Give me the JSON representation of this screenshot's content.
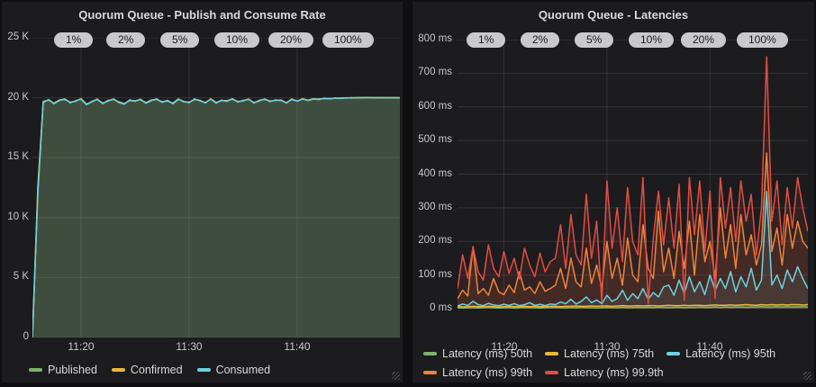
{
  "page": {
    "background": "#0f0f11",
    "panel_background": "#1c1c1f",
    "grid_color": "rgba(255,255,255,0.10)",
    "text_color": "#d8d9da",
    "axis_label_color": "#c7c8ca",
    "pill_background": "#c9c9cb"
  },
  "panels": [
    {
      "title": "Quorum Queue - Publish and Consume Rate",
      "pills": [
        "1%",
        "2%",
        "5%",
        "10%",
        "20%",
        "100%"
      ],
      "chart_data": {
        "type": "line",
        "title": "Quorum Queue - Publish and Consume Rate",
        "x_unit": "time of day, minutes after 11:15.5",
        "x_start": 0,
        "x_step": 0.5,
        "x_domain": [
          0,
          34
        ],
        "ylim": [
          0,
          25000
        ],
        "grid": true,
        "legend_position": "bottom",
        "y_ticks": [
          {
            "label": "25 K",
            "v": 25000
          },
          {
            "label": "20 K",
            "v": 20000
          },
          {
            "label": "15 K",
            "v": 15000
          },
          {
            "label": "10 K",
            "v": 10000
          },
          {
            "label": "5 K",
            "v": 5000
          },
          {
            "label": "0",
            "v": 0
          }
        ],
        "x_ticks": [
          {
            "label": "11:20",
            "t": 4.5
          },
          {
            "label": "11:30",
            "t": 14.5
          },
          {
            "label": "11:40",
            "t": 24.5
          }
        ],
        "series": [
          {
            "name": "Published",
            "color": "#7EB26D",
            "fill_opacity": 0.18,
            "values": [
              0,
              12600,
              19700,
              19800,
              19560,
              19820,
              19850,
              19640,
              19700,
              19920,
              19480,
              19650,
              19900,
              19500,
              19780,
              19850,
              19660,
              19520,
              19760,
              19750,
              19830,
              19600,
              19820,
              19840,
              19680,
              19720,
              19560,
              19900,
              19650,
              19640,
              19850,
              19790,
              19560,
              19920,
              19620,
              19750,
              19760,
              19870,
              19700,
              19730,
              19900,
              19560,
              19800,
              19850,
              19730,
              19770,
              19820,
              19560,
              19900,
              19700,
              19930,
              19760,
              19880,
              19900,
              19920,
              19940,
              19950,
              19980,
              19970,
              20010,
              19990,
              20020,
              20000,
              20015,
              20000,
              20010,
              20000,
              20008,
              20000
            ]
          },
          {
            "name": "Confirmed",
            "color": "#EAB839",
            "fill_opacity": 0.07,
            "values": [
              0,
              12300,
              19650,
              19820,
              19530,
              19800,
              19870,
              19610,
              19730,
              19900,
              19450,
              19680,
              19870,
              19530,
              19750,
              19880,
              19630,
              19490,
              19790,
              19720,
              19850,
              19570,
              19790,
              19870,
              19650,
              19750,
              19530,
              19880,
              19680,
              19610,
              19870,
              19760,
              19580,
              19900,
              19590,
              19780,
              19730,
              19900,
              19670,
              19760,
              19880,
              19580,
              19770,
              19880,
              19710,
              19800,
              19790,
              19580,
              19880,
              19720,
              19900,
              19780,
              19900,
              19880,
              19940,
              19920,
              19960,
              19960,
              19990,
              20000,
              20000,
              20010,
              20010,
              20005,
              20005,
              20005,
              20002,
              20004,
              20000
            ]
          },
          {
            "name": "Consumed",
            "color": "#6ED0E0",
            "fill_opacity": 0.1,
            "values": [
              0,
              12000,
              19600,
              19850,
              19500,
              19780,
              19900,
              19580,
              19750,
              19880,
              19420,
              19700,
              19850,
              19560,
              19720,
              19900,
              19600,
              19460,
              19820,
              19700,
              19880,
              19540,
              19760,
              19900,
              19620,
              19780,
              19500,
              19860,
              19700,
              19580,
              19900,
              19740,
              19600,
              19880,
              19560,
              19800,
              19700,
              19920,
              19640,
              19780,
              19860,
              19600,
              19740,
              19900,
              19680,
              19820,
              19760,
              19600,
              19860,
              19740,
              19880,
              19800,
              19920,
              19850,
              19960,
              19900,
              19980,
              19940,
              20000,
              19980,
              20010,
              20000,
              20020,
              20000,
              20010,
              20000,
              20005,
              20000,
              20000
            ]
          }
        ]
      }
    },
    {
      "title": "Quorum Queue - Latencies",
      "pills": [
        "1%",
        "2%",
        "5%",
        "10%",
        "20%",
        "100%"
      ],
      "chart_data": {
        "type": "line",
        "title": "Quorum Queue - Latencies",
        "x_unit": "time of day, minutes after 11:15.5",
        "x_start": 0,
        "x_step": 0.5,
        "x_domain": [
          0,
          34
        ],
        "ylim": [
          0,
          800
        ],
        "grid": true,
        "legend_position": "bottom",
        "y_ticks": [
          {
            "label": "800 ms",
            "v": 800
          },
          {
            "label": "700 ms",
            "v": 700
          },
          {
            "label": "600 ms",
            "v": 600
          },
          {
            "label": "500 ms",
            "v": 500
          },
          {
            "label": "400 ms",
            "v": 400
          },
          {
            "label": "300 ms",
            "v": 300
          },
          {
            "label": "200 ms",
            "v": 200
          },
          {
            "label": "100 ms",
            "v": 100
          },
          {
            "label": "0 ms",
            "v": 0
          }
        ],
        "x_ticks": [
          {
            "label": "11:20",
            "t": 4.5
          },
          {
            "label": "11:30",
            "t": 14.5
          },
          {
            "label": "11:40",
            "t": 24.5
          }
        ],
        "series": [
          {
            "name": "Latency (ms) 50th",
            "color": "#7EB26D",
            "fill_opacity": 0.1,
            "values": [
              3,
              2,
              3,
              3,
              2,
              3,
              4,
              3,
              2,
              3,
              3,
              2,
              3,
              4,
              3,
              3,
              2,
              3,
              3,
              4,
              3,
              2,
              3,
              3,
              4,
              3,
              3,
              2,
              3,
              4,
              3,
              3,
              4,
              3,
              3,
              4,
              3,
              4,
              3,
              4,
              4,
              3,
              4,
              4,
              3,
              4,
              4,
              5,
              4,
              4,
              5,
              4,
              5,
              4,
              5,
              5,
              4,
              5,
              5,
              6,
              5,
              5,
              6,
              5,
              6,
              5,
              5,
              6,
              5
            ]
          },
          {
            "name": "Latency (ms) 75th",
            "color": "#EAB839",
            "fill_opacity": 0.1,
            "values": [
              6,
              5,
              6,
              7,
              6,
              6,
              7,
              6,
              5,
              6,
              7,
              6,
              6,
              7,
              6,
              7,
              6,
              6,
              7,
              7,
              6,
              7,
              7,
              8,
              7,
              7,
              8,
              7,
              8,
              8,
              7,
              8,
              9,
              8,
              8,
              9,
              8,
              9,
              9,
              8,
              9,
              10,
              9,
              9,
              10,
              9,
              10,
              10,
              9,
              10,
              11,
              10,
              10,
              11,
              10,
              11,
              12,
              11,
              10,
              12,
              11,
              12,
              11,
              12,
              11,
              12,
              12,
              11,
              12
            ]
          },
          {
            "name": "Latency (ms) 95th",
            "color": "#6ED0E0",
            "fill_opacity": 0.1,
            "values": [
              8,
              14,
              10,
              22,
              12,
              9,
              16,
              11,
              9,
              13,
              10,
              15,
              9,
              12,
              18,
              10,
              13,
              9,
              14,
              12,
              20,
              15,
              28,
              14,
              22,
              35,
              18,
              26,
              15,
              40,
              22,
              30,
              55,
              25,
              45,
              30,
              60,
              28,
              48,
              35,
              65,
              70,
              40,
              85,
              45,
              95,
              50,
              80,
              42,
              100,
              55,
              90,
              60,
              110,
              50,
              95,
              65,
              120,
              55,
              85,
              348,
              70,
              100,
              60,
              115,
              80,
              125,
              90,
              60
            ]
          },
          {
            "name": "Latency (ms) 99th",
            "color": "#EF843C",
            "fill_opacity": 0.1,
            "values": [
              30,
              55,
              38,
              185,
              45,
              60,
              40,
              90,
              50,
              42,
              70,
              48,
              110,
              55,
              65,
              45,
              80,
              52,
              60,
              70,
              120,
              60,
              150,
              80,
              65,
              180,
              75,
              130,
              60,
              200,
              90,
              150,
              70,
              210,
              100,
              80,
              250,
              120,
              90,
              290,
              110,
              180,
              90,
              230,
              120,
              260,
              100,
              280,
              140,
              200,
              90,
              300,
              150,
              250,
              120,
              280,
              160,
              220,
              130,
              190,
              463,
              170,
              240,
              130,
              280,
              180,
              260,
              200,
              180
            ]
          },
          {
            "name": "Latency (ms) 99.9th",
            "color": "#E24D42",
            "fill_opacity": 0.1,
            "values": [
              60,
              160,
              90,
              185,
              110,
              85,
              190,
              120,
              95,
              170,
              105,
              150,
              88,
              180,
              130,
              95,
              165,
              110,
              140,
              150,
              250,
              120,
              280,
              160,
              130,
              340,
              150,
              260,
              20,
              380,
              180,
              300,
              140,
              360,
              200,
              160,
              390,
              15,
              210,
              350,
              190,
              330,
              180,
              370,
              25,
              390,
              220,
              380,
              170,
              350,
              30,
              390,
              240,
              360,
              200,
              380,
              260,
              340,
              160,
              300,
              749,
              260,
              380,
              190,
              360,
              240,
              390,
              300,
              230
            ]
          }
        ]
      }
    }
  ]
}
